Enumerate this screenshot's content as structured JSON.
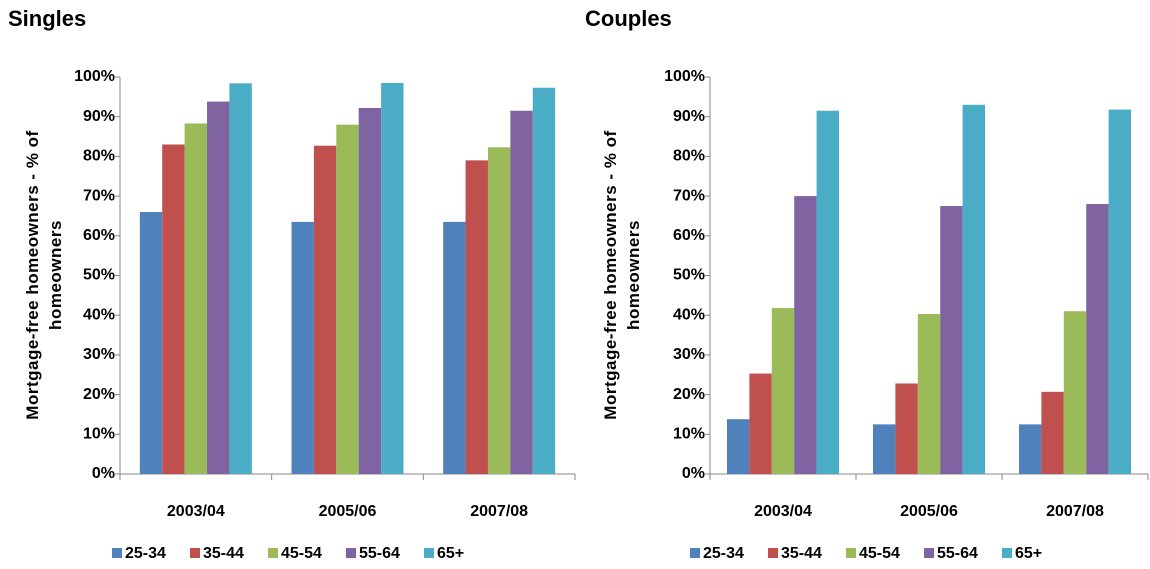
{
  "chart_data": [
    {
      "type": "bar",
      "title": "Singles",
      "ylabel": "Mortgage-free homeowners - % of homeowners",
      "categories": [
        "2003/04",
        "2005/06",
        "2007/08"
      ],
      "series": [
        {
          "name": "25-34",
          "color": "#4f81bd",
          "values": [
            66,
            63.5,
            63.5
          ]
        },
        {
          "name": "35-44",
          "color": "#c0504d",
          "values": [
            83,
            82.7,
            79
          ]
        },
        {
          "name": "45-54",
          "color": "#9bbb59",
          "values": [
            88.3,
            88,
            82.3
          ]
        },
        {
          "name": "55-64",
          "color": "#8064a2",
          "values": [
            93.8,
            92.2,
            91.5
          ]
        },
        {
          "name": "65+",
          "color": "#4bacc6",
          "values": [
            98.4,
            98.5,
            97.3
          ]
        }
      ],
      "ylim": [
        0,
        100
      ],
      "yticks": [
        {
          "value": 0,
          "label": "0%"
        },
        {
          "value": 10,
          "label": "10%"
        },
        {
          "value": 20,
          "label": "20%"
        },
        {
          "value": 30,
          "label": "30%"
        },
        {
          "value": 40,
          "label": "40%"
        },
        {
          "value": 50,
          "label": "50%"
        },
        {
          "value": 60,
          "label": "60%"
        },
        {
          "value": 70,
          "label": "70%"
        },
        {
          "value": 80,
          "label": "80%"
        },
        {
          "value": 90,
          "label": "90%"
        },
        {
          "value": 100,
          "label": "100%"
        }
      ],
      "grid": false,
      "legend": "bottom"
    },
    {
      "type": "bar",
      "title": "Couples",
      "ylabel": "Mortgage-free homeowners - % of homeowners",
      "categories": [
        "2003/04",
        "2005/06",
        "2007/08"
      ],
      "series": [
        {
          "name": "25-34",
          "color": "#4f81bd",
          "values": [
            13.8,
            12.5,
            12.5
          ]
        },
        {
          "name": "35-44",
          "color": "#c0504d",
          "values": [
            25.3,
            22.8,
            20.7
          ]
        },
        {
          "name": "45-54",
          "color": "#9bbb59",
          "values": [
            41.8,
            40.3,
            41
          ]
        },
        {
          "name": "55-64",
          "color": "#8064a2",
          "values": [
            70,
            67.5,
            68
          ]
        },
        {
          "name": "65+",
          "color": "#4bacc6",
          "values": [
            91.5,
            93,
            91.8
          ]
        }
      ],
      "ylim": [
        0,
        100
      ],
      "yticks": [
        {
          "value": 0,
          "label": "0%"
        },
        {
          "value": 10,
          "label": "10%"
        },
        {
          "value": 20,
          "label": "20%"
        },
        {
          "value": 30,
          "label": "30%"
        },
        {
          "value": 40,
          "label": "40%"
        },
        {
          "value": 50,
          "label": "50%"
        },
        {
          "value": 60,
          "label": "60%"
        },
        {
          "value": 70,
          "label": "70%"
        },
        {
          "value": 80,
          "label": "80%"
        },
        {
          "value": 90,
          "label": "90%"
        },
        {
          "value": 100,
          "label": "100%"
        }
      ],
      "grid": false,
      "legend": "bottom"
    }
  ]
}
